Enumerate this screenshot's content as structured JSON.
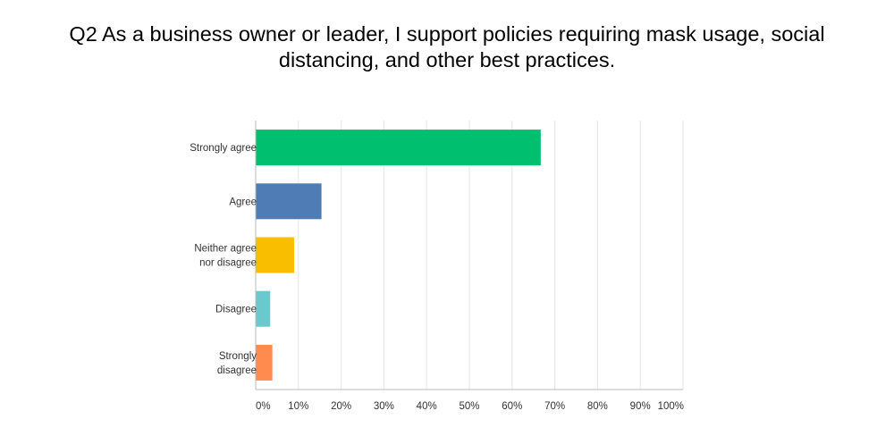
{
  "chart_data": {
    "type": "bar",
    "orientation": "horizontal",
    "title": "Q2 As a business owner or leader, I support policies requiring mask usage, social distancing, and other best practices.",
    "categories": [
      [
        "Strongly agree"
      ],
      [
        "Agree"
      ],
      [
        "Neither agree",
        "nor disagree"
      ],
      [
        "Disagree"
      ],
      [
        "Strongly",
        "disagree"
      ]
    ],
    "values": [
      66.7,
      15.4,
      9.0,
      3.4,
      3.9
    ],
    "colors": [
      "#00bf6f",
      "#507cb6",
      "#f9be00",
      "#6bc8cd",
      "#ff8b4f"
    ],
    "xlim": [
      0,
      100
    ],
    "ticks": [
      0,
      10,
      20,
      30,
      40,
      50,
      60,
      70,
      80,
      90,
      100
    ],
    "tick_labels": [
      "0%",
      "10%",
      "20%",
      "30%",
      "40%",
      "50%",
      "60%",
      "70%",
      "80%",
      "90%",
      "100%"
    ],
    "xlabel": "",
    "ylabel": "",
    "grid": true
  }
}
